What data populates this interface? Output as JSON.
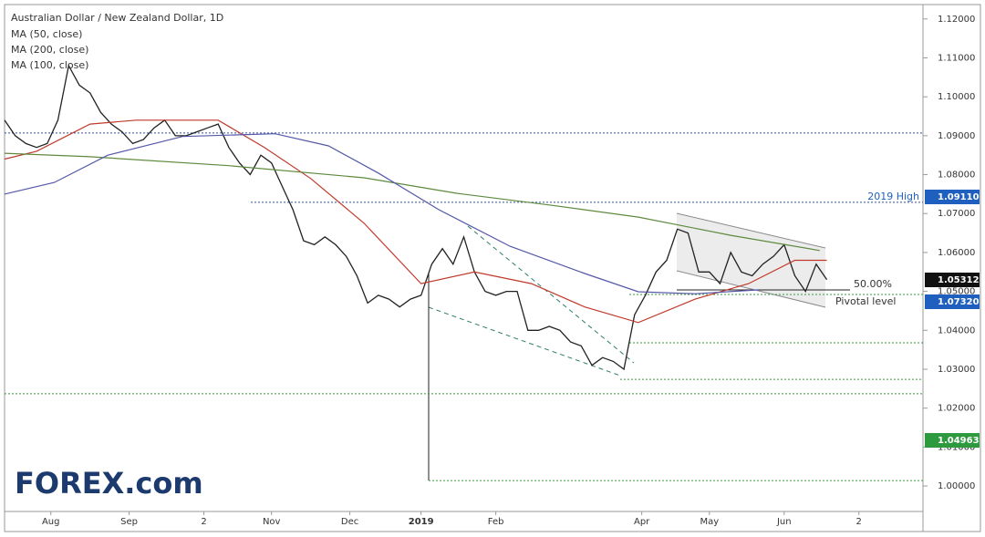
{
  "chart_data": {
    "type": "line",
    "title": "Australian Dollar / New Zealand Dollar, 1D",
    "legend": [
      "MA (50, close)",
      "MA (200, close)",
      "MA (100, close)"
    ],
    "xlim": [
      0,
      258
    ],
    "ylim": [
      0.989,
      1.1237
    ],
    "xticks": [
      {
        "value": 13,
        "label": "Aug"
      },
      {
        "value": 35,
        "label": "Sep"
      },
      {
        "value": 56,
        "label": "2"
      },
      {
        "value": 75,
        "label": "Nov"
      },
      {
        "value": 97,
        "label": "Dec"
      },
      {
        "value": 117,
        "label": "2019"
      },
      {
        "value": 138,
        "label": "Feb"
      },
      {
        "value": 179,
        "label": "Apr"
      },
      {
        "value": 198,
        "label": "May"
      },
      {
        "value": 219,
        "label": "Jun"
      },
      {
        "value": 240,
        "label": "2"
      }
    ],
    "yticks": [
      {
        "value": 1.0,
        "label": "1.00000"
      },
      {
        "value": 1.01,
        "label": "1.01000"
      },
      {
        "value": 1.02,
        "label": "1.02000"
      },
      {
        "value": 1.03,
        "label": "1.03000"
      },
      {
        "value": 1.04,
        "label": "1.04000"
      },
      {
        "value": 1.05,
        "label": "1.05000"
      },
      {
        "value": 1.06,
        "label": "1.06000"
      },
      {
        "value": 1.07,
        "label": "1.07000"
      },
      {
        "value": 1.08,
        "label": "1.08000"
      },
      {
        "value": 1.09,
        "label": "1.09000"
      },
      {
        "value": 1.1,
        "label": "1.10000"
      },
      {
        "value": 1.11,
        "label": "1.11000"
      },
      {
        "value": 1.12,
        "label": "1.12000"
      }
    ],
    "series": [
      {
        "color": "#222222",
        "x": [
          0,
          3,
          6,
          9,
          12,
          15,
          18,
          21,
          24,
          27,
          30,
          33,
          36,
          39,
          42,
          45,
          48,
          51,
          54,
          57,
          60,
          63,
          66,
          69,
          72,
          75,
          78,
          81,
          84,
          87,
          90,
          93,
          96,
          99,
          102,
          105,
          108,
          111,
          114,
          117,
          120,
          123,
          126,
          129,
          132,
          135,
          138,
          141,
          144,
          147,
          150,
          153,
          156,
          159,
          162,
          165,
          168,
          171,
          174,
          177,
          180,
          183,
          186,
          189,
          192,
          195,
          198,
          201,
          204,
          207,
          210,
          213,
          216,
          219,
          222,
          225,
          228,
          231
        ],
        "values": [
          1.094,
          1.09,
          1.088,
          1.087,
          1.088,
          1.094,
          1.108,
          1.103,
          1.101,
          1.096,
          1.093,
          1.091,
          1.088,
          1.089,
          1.092,
          1.094,
          1.09,
          1.09,
          1.091,
          1.092,
          1.093,
          1.087,
          1.083,
          1.08,
          1.085,
          1.083,
          1.077,
          1.071,
          1.063,
          1.062,
          1.064,
          1.062,
          1.059,
          1.054,
          1.047,
          1.049,
          1.048,
          1.046,
          1.048,
          1.049,
          1.057,
          1.061,
          1.057,
          1.064,
          1.055,
          1.05,
          1.049,
          1.05,
          1.05,
          1.04,
          1.04,
          1.041,
          1.04,
          1.037,
          1.036,
          1.031,
          1.033,
          1.032,
          1.03,
          1.044,
          1.049,
          1.055,
          1.058,
          1.066,
          1.065,
          1.055,
          1.055,
          1.052,
          1.06,
          1.055,
          1.054,
          1.057,
          1.059,
          1.062,
          1.054,
          1.05,
          1.057,
          1.053
        ]
      },
      {
        "name": "MA (50, close)",
        "color": "#c0392b",
        "x": [
          0,
          9,
          24,
          37,
          60,
          73,
          86,
          101,
          117,
          132,
          148,
          163,
          178,
          194,
          209,
          222,
          231
        ],
        "values": [
          1.084,
          1.086,
          1.093,
          1.094,
          1.094,
          1.087,
          1.079,
          1.0675,
          1.052,
          1.055,
          1.052,
          1.046,
          1.042,
          1.048,
          1.052,
          1.058,
          1.058
        ]
      },
      {
        "name": "MA (200, close)",
        "color": "#5e8a3e",
        "x": [
          0,
          24,
          63,
          101,
          127,
          153,
          178,
          204,
          229
        ],
        "values": [
          1.0855,
          1.0846,
          1.0823,
          1.0792,
          1.0752,
          1.0722,
          1.0691,
          1.0644,
          1.0605
        ]
      },
      {
        "name": "MA (100, close)",
        "color": "#5558a8",
        "x": [
          0,
          14,
          29,
          50,
          76,
          91,
          105,
          122,
          142,
          163,
          178,
          194,
          212
        ],
        "values": [
          1.075,
          1.078,
          1.085,
          1.0898,
          1.0905,
          1.0874,
          1.0804,
          1.071,
          1.0616,
          1.0546,
          1.0499,
          1.0494,
          1.0504
        ]
      }
    ],
    "levels": [
      {
        "value": 1.0907,
        "color": "#2b4fa0"
      },
      {
        "value": 1.0729,
        "color": "#2b4fa0"
      },
      {
        "value": 1.0492,
        "color": "#3a9a3a"
      },
      {
        "value": 1.0368,
        "color": "#3a9a3a"
      },
      {
        "value": 1.0274,
        "color": "#3a9a3a"
      },
      {
        "value": 1.0237,
        "color": "#3a9a3a"
      },
      {
        "value": 1.0014,
        "color": "#3a9a3a"
      }
    ],
    "annotations": [
      "2019 High",
      "50.00%",
      "Pivotal level"
    ],
    "price_labels": [
      {
        "label": "1.09110",
        "color": "#1f5fbf"
      },
      {
        "label": "1.05312",
        "color": "#111111"
      },
      {
        "label": "1.07320",
        "color": "#1f5fbf"
      },
      {
        "label": "1.04963",
        "color": "#2e9a3e"
      }
    ],
    "logo": "FOREX.com"
  }
}
